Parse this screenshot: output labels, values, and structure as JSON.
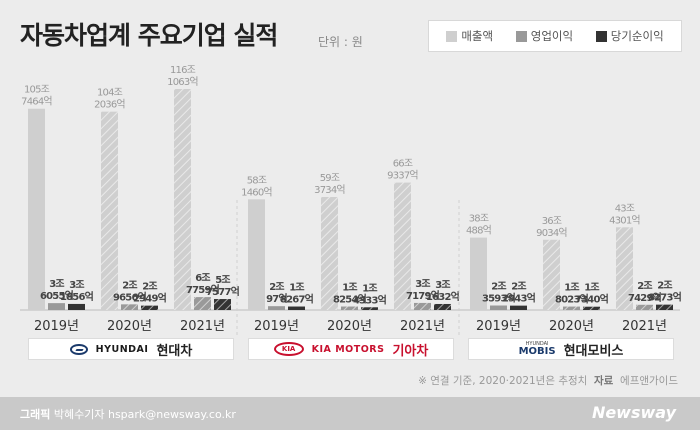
{
  "title": "자동차업계 주요기업 실적",
  "unit": "단위 : 원",
  "legend": [
    {
      "label": "매출액",
      "color": "#cfcfcf"
    },
    {
      "label": "영업이익",
      "color": "#999999"
    },
    {
      "label": "당기순이익",
      "color": "#333333"
    }
  ],
  "companies": [
    {
      "logo": "HYUNDAI",
      "name": "현대차"
    },
    {
      "logo": "KIA MOTORS",
      "logo_mark": "KIA",
      "name": "기아차"
    },
    {
      "logo_small": "HYUNDAI",
      "logo": "MOBIS",
      "name": "현대모비스"
    }
  ],
  "chart_data": {
    "type": "bar",
    "unit": "억원",
    "series_names": [
      "매출액",
      "영업이익",
      "당기순이익"
    ],
    "groups": [
      {
        "company": "현대차",
        "year": "2019년",
        "values": [
          1057464,
          36055,
          31856
        ],
        "labels": [
          [
            "105조",
            "7464억"
          ],
          [
            "3조",
            "6055억"
          ],
          [
            "3조",
            "1856억"
          ]
        ]
      },
      {
        "company": "현대차",
        "year": "2020년",
        "values": [
          1042036,
          29656,
          22949
        ],
        "labels": [
          [
            "104조",
            "2036억"
          ],
          [
            "2조",
            "9656억"
          ],
          [
            "2조",
            "2949억"
          ]
        ]
      },
      {
        "company": "현대차",
        "year": "2021년",
        "values": [
          1161063,
          67759,
          57577
        ],
        "labels": [
          [
            "116조",
            "1063억"
          ],
          [
            "6조",
            "7759억"
          ],
          [
            "5조",
            "7577억"
          ]
        ]
      },
      {
        "company": "기아차",
        "year": "2019년",
        "values": [
          581460,
          20097,
          18267
        ],
        "labels": [
          [
            "58조",
            "1460억"
          ],
          [
            "2조",
            "97억"
          ],
          [
            "1조",
            "8267억"
          ]
        ]
      },
      {
        "company": "기아차",
        "year": "2020년",
        "values": [
          593734,
          18254,
          14333
        ],
        "labels": [
          [
            "59조",
            "3734억"
          ],
          [
            "1조",
            "8254억"
          ],
          [
            "1조",
            "4333억"
          ]
        ]
      },
      {
        "company": "기아차",
        "year": "2021년",
        "values": [
          669337,
          37179,
          31632
        ],
        "labels": [
          [
            "66조",
            "9337억"
          ],
          [
            "3조",
            "7179억"
          ],
          [
            "3조",
            "1632억"
          ]
        ]
      },
      {
        "company": "현대모비스",
        "year": "2019년",
        "values": [
          380488,
          23593,
          22943
        ],
        "labels": [
          [
            "38조",
            "488억"
          ],
          [
            "2조",
            "3593억"
          ],
          [
            "2조",
            "2943억"
          ]
        ]
      },
      {
        "company": "현대모비스",
        "year": "2020년",
        "values": [
          369034,
          18023,
          17340
        ],
        "labels": [
          [
            "36조",
            "9034억"
          ],
          [
            "1조",
            "8023억"
          ],
          [
            "1조",
            "7340억"
          ]
        ]
      },
      {
        "company": "현대모비스",
        "year": "2021년",
        "values": [
          434301,
          27429,
          28273
        ],
        "labels": [
          [
            "43조",
            "4301억"
          ],
          [
            "2조",
            "7429억"
          ],
          [
            "2조",
            "8273억"
          ]
        ]
      }
    ],
    "estimated_years": [
      "2020년",
      "2021년"
    ]
  },
  "footnote": {
    "note": "※  연결 기준, 2020·2021년은 추정치",
    "source_label": "자료",
    "source": "에프앤가이드"
  },
  "footer": {
    "credit_label": "그래픽",
    "credit": "박혜수기자 hspark@newsway.co.kr",
    "brand": "Newsway"
  }
}
